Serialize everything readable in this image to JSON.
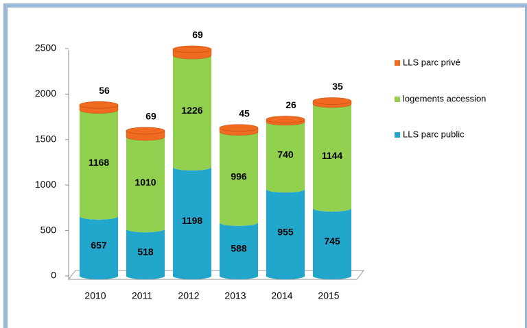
{
  "chart_data": {
    "type": "bar",
    "stacked": true,
    "categories": [
      "2010",
      "2011",
      "2012",
      "2013",
      "2014",
      "2015"
    ],
    "series": [
      {
        "name": "LLS parc public",
        "color": "#22a6cc",
        "values": [
          657,
          518,
          1198,
          588,
          955,
          745
        ]
      },
      {
        "name": "logements accession",
        "color": "#92d050",
        "values": [
          1168,
          1010,
          1226,
          996,
          740,
          1144
        ]
      },
      {
        "name": "LLS parc privé",
        "color": "#f06a20",
        "values": [
          56,
          69,
          69,
          45,
          26,
          35
        ]
      }
    ],
    "ylim": [
      0,
      2500
    ],
    "yticks": [
      0,
      500,
      1000,
      1500,
      2000,
      2500
    ],
    "legend": "right"
  }
}
